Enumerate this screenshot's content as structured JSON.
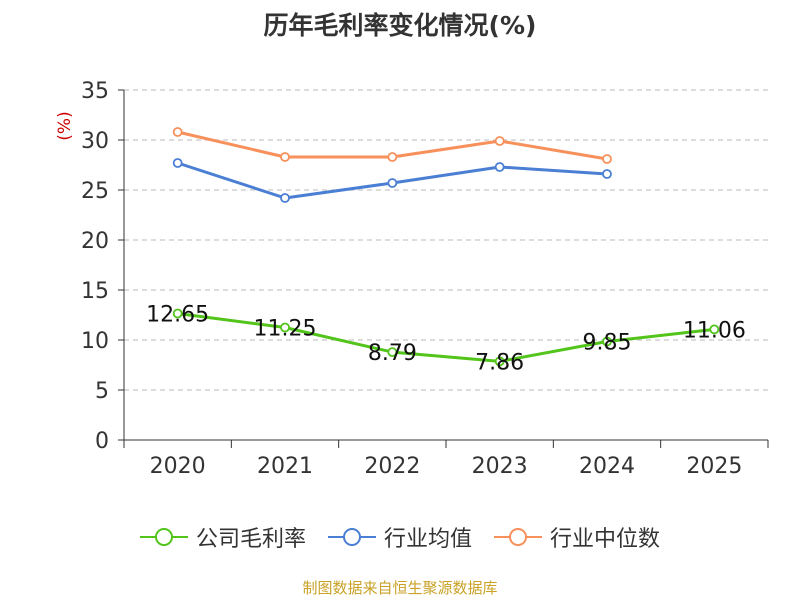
{
  "chart_data": {
    "type": "line",
    "title": "历年毛利率变化情况(%)",
    "ylabel": "(%)",
    "xlabel": "",
    "ylim": [
      0,
      35
    ],
    "yticks": [
      0,
      5,
      10,
      15,
      20,
      25,
      30,
      35
    ],
    "categories": [
      "2020",
      "2021",
      "2022",
      "2023",
      "2024",
      "2025"
    ],
    "grid": true,
    "legend_position": "bottom",
    "series": [
      {
        "name": "公司毛利率",
        "color": "#52c41a",
        "values": [
          12.65,
          11.25,
          8.79,
          7.86,
          9.85,
          11.06
        ],
        "labels": [
          "12.65",
          "11.25",
          "8.79",
          "7.86",
          "9.85",
          "11.06"
        ]
      },
      {
        "name": "行业均值",
        "color": "#4a7fd4",
        "values": [
          27.7,
          24.2,
          25.7,
          27.3,
          26.6,
          null
        ]
      },
      {
        "name": "行业中位数",
        "color": "#f7905a",
        "values": [
          30.8,
          28.3,
          28.3,
          29.9,
          28.1,
          null
        ]
      }
    ]
  },
  "footer": {
    "source": "制图数据来自恒生聚源数据库"
  }
}
